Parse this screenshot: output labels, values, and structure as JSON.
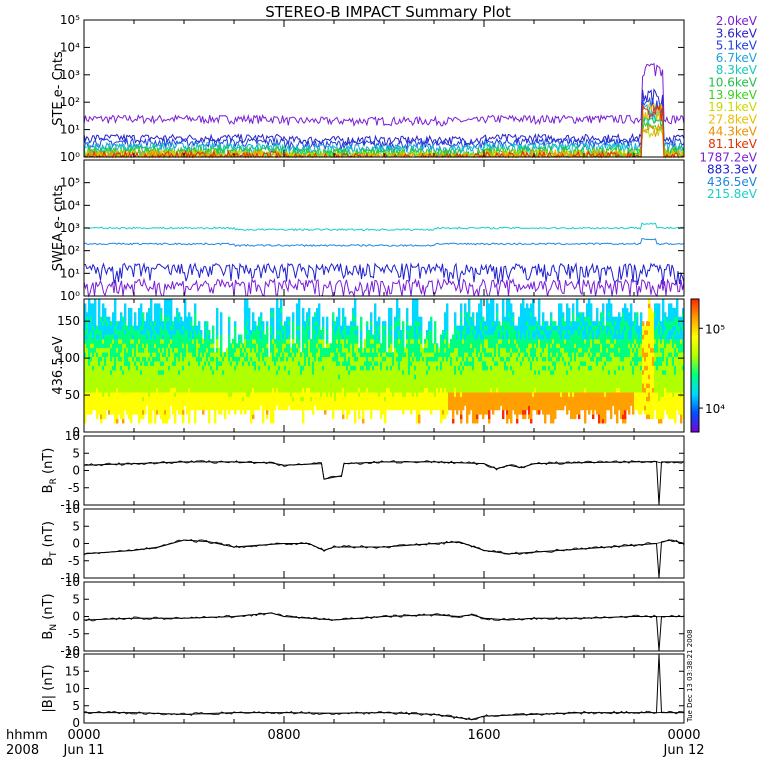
{
  "title": "STEREO-B IMPACT Summary Plot",
  "footer": {
    "hhmm_label": "hhmm",
    "year_label": "2008",
    "x_ticks": [
      "0000",
      "0800",
      "1600",
      "0000"
    ],
    "date_labels": [
      "Jun 11",
      "",
      "",
      "Jun 12"
    ]
  },
  "timestamp": "Tue Dec 13 03:38:21 2008",
  "colors": {
    "ste_channels": [
      "#7a1fd6",
      "#2a22c8",
      "#1f3fe0",
      "#1fa0e0",
      "#18c8b8",
      "#20c050",
      "#3ad020",
      "#c8d800",
      "#e8c000",
      "#f09000",
      "#e03000"
    ],
    "swea_channels": [
      "#7a1fd6",
      "#1f1fd0",
      "#1f88e0",
      "#18d0c8"
    ],
    "colorbar": [
      "#7a00d8",
      "#0050ff",
      "#00d8ff",
      "#00ff80",
      "#b0ff00",
      "#ffff00",
      "#ffa000",
      "#ff2800"
    ]
  },
  "chart_data": [
    {
      "type": "line",
      "panel": "STE",
      "ylabel": "STE e- Cnts",
      "yscale": "log",
      "ylim": [
        1,
        100000
      ],
      "y_ticks": [
        "10⁰",
        "10¹",
        "10²",
        "10³",
        "10⁴",
        "10⁵"
      ],
      "x_range_hours": [
        0,
        24
      ],
      "series": [
        {
          "name": "2.0keV",
          "baseline": 25,
          "event_peak": 3000
        },
        {
          "name": "3.6keV",
          "baseline": 5,
          "event_peak": 300
        },
        {
          "name": "5.1keV",
          "baseline": 3.5,
          "event_peak": 150
        },
        {
          "name": "6.7keV",
          "baseline": 2.5,
          "event_peak": 80
        },
        {
          "name": "8.3keV",
          "baseline": 2,
          "event_peak": 50
        },
        {
          "name": "10.6keV",
          "baseline": 1.6,
          "event_peak": 30
        },
        {
          "name": "13.9keV",
          "baseline": 1.4,
          "event_peak": 20
        },
        {
          "name": "19.1keV",
          "baseline": 1.2,
          "event_peak": 12
        },
        {
          "name": "27.8keV",
          "baseline": 1.1,
          "event_peak": 90
        },
        {
          "name": "44.3keV",
          "baseline": 1.05,
          "event_peak": 15
        },
        {
          "name": "81.1keV",
          "baseline": 1.02,
          "event_peak": 80
        }
      ]
    },
    {
      "type": "line",
      "panel": "SWEA",
      "ylabel": "SWEA e- cnts",
      "yscale": "log",
      "ylim": [
        1,
        1000000
      ],
      "y_ticks": [
        "10⁰",
        "10¹",
        "10²",
        "10³",
        "10⁴",
        "10⁵"
      ],
      "series": [
        {
          "name": "1787.2eV",
          "baseline": 3
        },
        {
          "name": "883.3eV",
          "baseline": 15
        },
        {
          "name": "436.5eV",
          "baseline": 200
        },
        {
          "name": "215.8eV",
          "baseline": 1000
        }
      ]
    },
    {
      "type": "heatmap",
      "panel": "PAD",
      "ylabel": "436.5 eV",
      "ylim": [
        0,
        180
      ],
      "y_ticks": [
        "0",
        "50",
        "100",
        "150"
      ],
      "colorbar_ticks": [
        "10⁵",
        "10⁴"
      ]
    },
    {
      "type": "line",
      "panel": "BR",
      "ylabel": "B_R (nT)",
      "ylabel_main": "B",
      "ylabel_sub": "R",
      "ylabel_unit": " (nT)",
      "ylim": [
        -10,
        10
      ],
      "y_ticks": [
        "10",
        "5",
        "0",
        "-5",
        "-10"
      ],
      "x": [
        0,
        2,
        4,
        6,
        7.5,
        8,
        9.5,
        9.6,
        10.3,
        10.4,
        12,
        14,
        16,
        16.5,
        17,
        17.5,
        18,
        20,
        22,
        22.9,
        23.0,
        23.1,
        24
      ],
      "y": [
        1.5,
        2,
        2.5,
        2.5,
        2.2,
        1.5,
        2,
        -2.5,
        -1.5,
        2,
        2.5,
        2.5,
        2,
        0.5,
        1.5,
        0.8,
        2,
        2.3,
        2.5,
        2.6,
        -10,
        2.5,
        2.5
      ]
    },
    {
      "type": "line",
      "panel": "BT",
      "ylabel": "B_T (nT)",
      "ylabel_main": "B",
      "ylabel_sub": "T",
      "ylabel_unit": " (nT)",
      "ylim": [
        -10,
        10
      ],
      "y_ticks": [
        "10",
        "5",
        "0",
        "-5",
        "-10"
      ],
      "x": [
        0,
        1,
        2,
        3,
        4,
        5,
        6,
        7,
        8,
        9,
        9.6,
        10,
        12,
        14,
        15,
        16,
        17,
        18,
        20,
        22,
        22.9,
        23.0,
        23.1,
        23.5,
        24
      ],
      "y": [
        -3,
        -2.5,
        -2,
        -1,
        1,
        0.5,
        -1,
        -0.5,
        0,
        0,
        -2,
        -1,
        -1,
        0,
        0.5,
        -2,
        -3,
        -2.5,
        -1.5,
        -0.5,
        0,
        -10,
        0.5,
        1,
        0
      ]
    },
    {
      "type": "line",
      "panel": "BN",
      "ylabel": "B_N (nT)",
      "ylabel_main": "B",
      "ylabel_sub": "N",
      "ylabel_unit": " (nT)",
      "ylim": [
        -10,
        10
      ],
      "y_ticks": [
        "10",
        "5",
        "0",
        "-5",
        "-10"
      ],
      "x": [
        0,
        2,
        4,
        6,
        7.5,
        8,
        9,
        10,
        12,
        14,
        15,
        15.5,
        16,
        17,
        18,
        20,
        22,
        22.9,
        23.0,
        23.1,
        24
      ],
      "y": [
        -1,
        -0.5,
        -0.5,
        0,
        1,
        0,
        -0.5,
        -1,
        0,
        0.5,
        0,
        0.5,
        -0.5,
        -1,
        -0.5,
        -0.5,
        0,
        0,
        -10,
        0,
        0
      ]
    },
    {
      "type": "line",
      "panel": "B",
      "ylabel": "|B| (nT)",
      "ylabel_main": "|B|",
      "ylabel_sub": "",
      "ylabel_unit": " (nT)",
      "ylim": [
        0,
        20
      ],
      "y_ticks": [
        "20",
        "15",
        "10",
        "5",
        "0"
      ],
      "x": [
        0,
        2,
        4,
        6,
        8,
        10,
        12,
        14,
        15,
        15.5,
        16,
        18,
        20,
        22,
        22.9,
        23.0,
        23.1,
        24
      ],
      "y": [
        3,
        3,
        2.5,
        3,
        3,
        2.8,
        3,
        2.5,
        1.5,
        1,
        2,
        2.5,
        3,
        3,
        3,
        20,
        3,
        3
      ]
    }
  ]
}
